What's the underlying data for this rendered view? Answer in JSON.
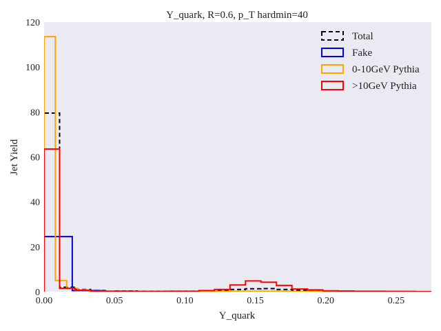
{
  "chart_data": {
    "type": "histogram",
    "title": "Y_quark, R=0.6, p_T hardmin=40",
    "xlabel": "Y_quark",
    "ylabel": "Jet Yield",
    "xlim": [
      0.0,
      0.275
    ],
    "ylim": [
      0,
      120
    ],
    "xticks": [
      0.0,
      0.05,
      0.1,
      0.15,
      0.2,
      0.25
    ],
    "xtick_labels": [
      "0.00",
      "0.05",
      "0.10",
      "0.15",
      "0.20",
      "0.25"
    ],
    "yticks": [
      0,
      20,
      40,
      60,
      80,
      100,
      120
    ],
    "ytick_labels": [
      "0",
      "20",
      "40",
      "60",
      "80",
      "100",
      "120"
    ],
    "grid": false,
    "background": "#eaeaf2",
    "legend_position": "top-right",
    "series": [
      {
        "name": "Total",
        "color": "#000000",
        "dashed": true,
        "edges": [
          0.0,
          0.011,
          0.022,
          0.033,
          0.044,
          0.055,
          0.066,
          0.077,
          0.088,
          0.099,
          0.11,
          0.121,
          0.132,
          0.143,
          0.154,
          0.165,
          0.176,
          0.187,
          0.198,
          0.209,
          0.22,
          0.231,
          0.242,
          0.253,
          0.264,
          0.275
        ],
        "values": [
          79.5,
          2.0,
          1.0,
          0.5,
          0.3,
          0.3,
          0.2,
          0.2,
          0.2,
          0.2,
          0.3,
          0.5,
          1.0,
          1.3,
          1.4,
          1.0,
          0.6,
          0.3,
          0.3,
          0.2,
          0.1,
          0.1,
          0.1,
          0.0,
          0.0
        ]
      },
      {
        "name": "Fake",
        "color": "#0000dd",
        "dashed": false,
        "edges": [
          0.0,
          0.02,
          0.04,
          0.06,
          0.08,
          0.1,
          0.12,
          0.14,
          0.16,
          0.18,
          0.2,
          0.22,
          0.24,
          0.26,
          0.275
        ],
        "values": [
          24.5,
          0.5,
          0.2,
          0.1,
          0.1,
          0.1,
          0.1,
          0.1,
          0.1,
          0.1,
          0.2,
          0.1,
          0.1,
          0.0
        ]
      },
      {
        "name": "0-10GeV Pythia",
        "color": "#ffa500",
        "dashed": false,
        "edges": [
          0.0,
          0.008,
          0.016,
          0.024,
          0.032,
          0.048,
          0.064,
          0.1,
          0.14,
          0.2,
          0.275
        ],
        "values": [
          113.5,
          5.0,
          1.5,
          0.8,
          0.3,
          0.2,
          0.1,
          0.1,
          0.1,
          0.1
        ]
      },
      {
        "name": ">10GeV Pythia",
        "color": "#ff0000",
        "dashed": false,
        "edges": [
          0.0,
          0.011,
          0.022,
          0.033,
          0.044,
          0.055,
          0.066,
          0.077,
          0.088,
          0.099,
          0.11,
          0.121,
          0.132,
          0.143,
          0.154,
          0.165,
          0.176,
          0.187,
          0.198,
          0.209,
          0.22,
          0.231,
          0.242,
          0.253,
          0.264,
          0.275
        ],
        "values": [
          63.5,
          1.5,
          0.6,
          0.3,
          0.2,
          0.2,
          0.1,
          0.1,
          0.2,
          0.2,
          0.5,
          1.0,
          3.0,
          4.8,
          4.2,
          2.8,
          1.2,
          0.8,
          0.4,
          0.3,
          0.2,
          0.2,
          0.1,
          0.1,
          0.0
        ]
      }
    ]
  }
}
